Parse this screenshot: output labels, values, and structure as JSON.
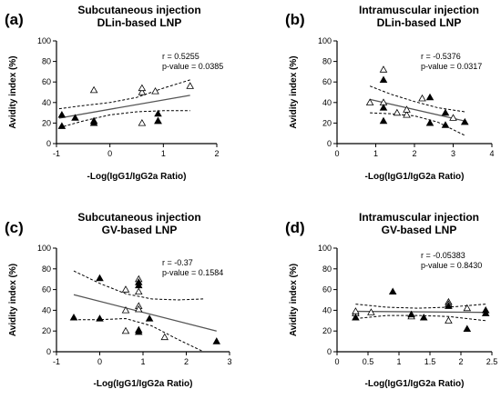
{
  "chart_data": [
    {
      "type": "scatter",
      "panel_letter": "(a)",
      "title": "Subcutaneous injection",
      "subtitle": "DLin-based LNP",
      "xlabel": "-Log(IgG1/IgG2a Ratio)",
      "ylabel": "Avidity index (%)",
      "xlim": [
        -1,
        2
      ],
      "ylim": [
        0,
        100
      ],
      "xticks": [
        -1,
        0,
        1,
        2
      ],
      "yticks": [
        0,
        20,
        40,
        60,
        80,
        100
      ],
      "r_text": "r = 0.5255",
      "p_text": "p-value = 0.0385",
      "filled_points": [
        [
          -0.9,
          17
        ],
        [
          -0.9,
          28
        ],
        [
          -0.65,
          25
        ],
        [
          -0.3,
          20
        ],
        [
          -0.3,
          22
        ],
        [
          0.9,
          29
        ],
        [
          0.9,
          22
        ]
      ],
      "open_points": [
        [
          -0.3,
          52
        ],
        [
          0.6,
          20
        ],
        [
          0.6,
          50
        ],
        [
          0.6,
          54
        ],
        [
          0.85,
          51
        ],
        [
          0.9,
          22
        ],
        [
          1.5,
          56
        ]
      ],
      "regression": {
        "x": [
          -0.95,
          1.5
        ],
        "y": [
          24.8,
          47
        ]
      },
      "ci_upper": {
        "x": [
          -0.95,
          -0.5,
          0,
          0.5,
          1.0,
          1.5
        ],
        "y": [
          34,
          37,
          40,
          45,
          54,
          62
        ]
      },
      "ci_lower": {
        "x": [
          -0.95,
          -0.5,
          0,
          0.5,
          1.0,
          1.5
        ],
        "y": [
          15.5,
          22,
          28,
          31,
          32,
          32
        ]
      }
    },
    {
      "type": "scatter",
      "panel_letter": "(b)",
      "title": "Intramuscular injection",
      "subtitle": "DLin-based LNP",
      "xlabel": "-Log(IgG1/IgG2a Ratio)",
      "ylabel": "Avidity index (%)",
      "xlim": [
        0,
        4
      ],
      "ylim": [
        0,
        100
      ],
      "xticks": [
        0,
        1,
        2,
        3,
        4
      ],
      "yticks": [
        0,
        20,
        40,
        60,
        80,
        100
      ],
      "r_text": "r = -0.5376",
      "p_text": "p-value = 0.0317",
      "filled_points": [
        [
          1.2,
          62
        ],
        [
          1.2,
          22
        ],
        [
          1.2,
          35
        ],
        [
          2.4,
          45
        ],
        [
          2.4,
          20
        ],
        [
          2.8,
          30
        ],
        [
          2.8,
          18
        ],
        [
          3.3,
          21
        ]
      ],
      "open_points": [
        [
          0.85,
          40
        ],
        [
          1.2,
          72
        ],
        [
          1.2,
          40
        ],
        [
          1.55,
          30
        ],
        [
          1.8,
          28
        ],
        [
          1.8,
          33
        ],
        [
          2.2,
          44
        ],
        [
          3.0,
          25
        ]
      ],
      "regression": {
        "x": [
          0.85,
          3.3
        ],
        "y": [
          43,
          22
        ]
      },
      "ci_upper": {
        "x": [
          0.85,
          1.4,
          2.0,
          2.6,
          3.3
        ],
        "y": [
          56,
          48,
          41,
          35,
          31
        ]
      },
      "ci_lower": {
        "x": [
          0.85,
          1.4,
          2.0,
          2.6,
          3.3
        ],
        "y": [
          30,
          29,
          27,
          21,
          8
        ]
      }
    },
    {
      "type": "scatter",
      "panel_letter": "(c)",
      "title": "Subcutaneous injection",
      "subtitle": "GV-based LNP",
      "xlabel": "-Log(IgG1/IgG2a Ratio)",
      "ylabel": "Avidity index (%)",
      "xlim": [
        -1,
        3
      ],
      "ylim": [
        0,
        100
      ],
      "xticks": [
        -1,
        0,
        1,
        2,
        3
      ],
      "yticks": [
        0,
        20,
        40,
        60,
        80,
        100
      ],
      "r_text": "r = -0.37",
      "p_text": "p-value = 0.1584",
      "filled_points": [
        [
          -0.6,
          33
        ],
        [
          0.0,
          71
        ],
        [
          0.0,
          32
        ],
        [
          0.9,
          67
        ],
        [
          0.9,
          64
        ],
        [
          0.9,
          21
        ],
        [
          0.9,
          19
        ],
        [
          1.15,
          32
        ],
        [
          2.7,
          10
        ]
      ],
      "open_points": [
        [
          0.6,
          60
        ],
        [
          0.6,
          20
        ],
        [
          0.6,
          40
        ],
        [
          0.9,
          70
        ],
        [
          0.9,
          58
        ],
        [
          0.9,
          44
        ],
        [
          0.9,
          41
        ],
        [
          1.5,
          14
        ]
      ],
      "regression": {
        "x": [
          -0.6,
          2.7
        ],
        "y": [
          55,
          20
        ]
      },
      "ci_upper": {
        "x": [
          -0.6,
          0,
          0.6,
          1.2,
          1.8,
          2.4
        ],
        "y": [
          78,
          66,
          56,
          51,
          50,
          51
        ]
      },
      "ci_lower": {
        "x": [
          -0.6,
          0,
          0.6,
          1.2,
          1.8,
          2.4
        ],
        "y": [
          31,
          31,
          32,
          25,
          12,
          0
        ]
      }
    },
    {
      "type": "scatter",
      "panel_letter": "(d)",
      "title": "Intramuscular injection",
      "subtitle": "GV-based LNP",
      "xlabel": "-Log(IgG1/IgG2a Ratio)",
      "ylabel": "Avidity index (%)",
      "xlim": [
        0,
        2.5
      ],
      "ylim": [
        0,
        100
      ],
      "xticks": [
        0,
        0.5,
        1.0,
        1.5,
        2.0,
        2.5
      ],
      "yticks": [
        0,
        20,
        40,
        60,
        80,
        100
      ],
      "r_text": "r = -0.05383",
      "p_text": "p-value = 0.8430",
      "filled_points": [
        [
          0.3,
          33
        ],
        [
          0.9,
          58
        ],
        [
          1.2,
          36
        ],
        [
          1.4,
          33
        ],
        [
          1.8,
          44
        ],
        [
          2.1,
          22
        ],
        [
          2.4,
          40
        ],
        [
          2.4,
          37
        ]
      ],
      "open_points": [
        [
          0.3,
          37
        ],
        [
          0.3,
          39
        ],
        [
          0.55,
          38
        ],
        [
          1.2,
          34
        ],
        [
          1.8,
          30
        ],
        [
          1.8,
          48
        ],
        [
          1.8,
          46
        ],
        [
          2.1,
          42
        ]
      ],
      "regression": {
        "x": [
          0.3,
          2.4
        ],
        "y": [
          39,
          38
        ]
      },
      "ci_upper": {
        "x": [
          0.3,
          0.8,
          1.3,
          1.8,
          2.4
        ],
        "y": [
          46,
          43,
          42,
          43,
          46
        ]
      },
      "ci_lower": {
        "x": [
          0.3,
          0.8,
          1.3,
          1.8,
          2.4
        ],
        "y": [
          32,
          35,
          35,
          34,
          30
        ]
      }
    }
  ]
}
